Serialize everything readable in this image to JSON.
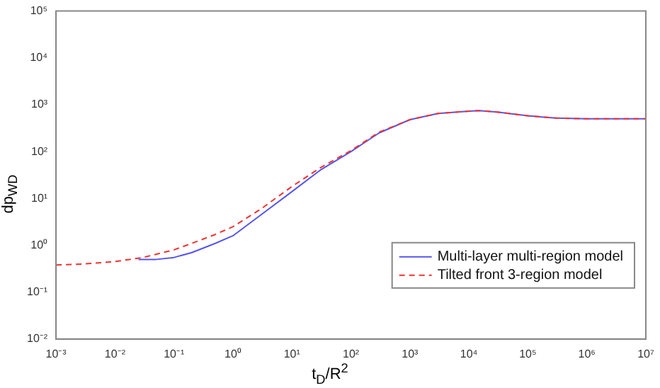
{
  "chart_data": {
    "type": "line",
    "xlabel": "t$_{D}$/R$^{2}$",
    "ylabel": "dp$_{WD}$",
    "log": "xy",
    "grid": false,
    "legend": "bottom right",
    "marker": "none",
    "xlim": [
      0.001,
      10000000
    ],
    "ylim": [
      0.01,
      100000
    ],
    "xticks": [
      {
        "value": 0.001,
        "label": "10⁻³"
      },
      {
        "value": 0.01,
        "label": "10⁻²"
      },
      {
        "value": 0.1,
        "label": "10⁻¹"
      },
      {
        "value": 1,
        "label": "10⁰"
      },
      {
        "value": 10,
        "label": "10¹"
      },
      {
        "value": 100,
        "label": "10²"
      },
      {
        "value": 1000,
        "label": "10³"
      },
      {
        "value": 10000,
        "label": "10⁴"
      },
      {
        "value": 100000,
        "label": "10⁵"
      },
      {
        "value": 1000000,
        "label": "10⁶"
      },
      {
        "value": 10000000,
        "label": "10⁷"
      }
    ],
    "yticks": [
      {
        "value": 0.01,
        "label": "10⁻²"
      },
      {
        "value": 0.1,
        "label": "10⁻¹"
      },
      {
        "value": 1,
        "label": "10⁰"
      },
      {
        "value": 10,
        "label": "10¹"
      },
      {
        "value": 100,
        "label": "10²"
      },
      {
        "value": 1000,
        "label": "10³"
      },
      {
        "value": 10000,
        "label": "10⁴"
      },
      {
        "value": 100000,
        "label": "10⁵"
      }
    ],
    "series": [
      {
        "name": "Multi-layer multi-region model",
        "color": "#5555ee",
        "line_style": "solid",
        "x": [
          0.025,
          0.05,
          0.1,
          0.2,
          0.5,
          1,
          3,
          10,
          30,
          100,
          300,
          1000,
          3000,
          10000,
          15000,
          30000,
          100000,
          300000,
          1000000,
          10000000
        ],
        "values": [
          0.5,
          0.5,
          0.55,
          0.7,
          1.1,
          1.6,
          4.5,
          14,
          40,
          100,
          250,
          480,
          650,
          730,
          750,
          700,
          580,
          520,
          500,
          500
        ]
      },
      {
        "name": "Tilted front 3-region model",
        "color": "#ee3333",
        "line_style": "dashed",
        "x": [
          0.001,
          0.003,
          0.01,
          0.03,
          0.1,
          0.2,
          0.5,
          1,
          3,
          10,
          30,
          100,
          300,
          1000,
          3000,
          10000,
          15000,
          30000,
          100000,
          300000,
          1000000,
          10000000
        ],
        "values": [
          0.38,
          0.4,
          0.45,
          0.55,
          0.8,
          1.1,
          1.7,
          2.5,
          6,
          18,
          45,
          105,
          260,
          480,
          650,
          730,
          750,
          700,
          580,
          520,
          500,
          500
        ]
      }
    ]
  }
}
